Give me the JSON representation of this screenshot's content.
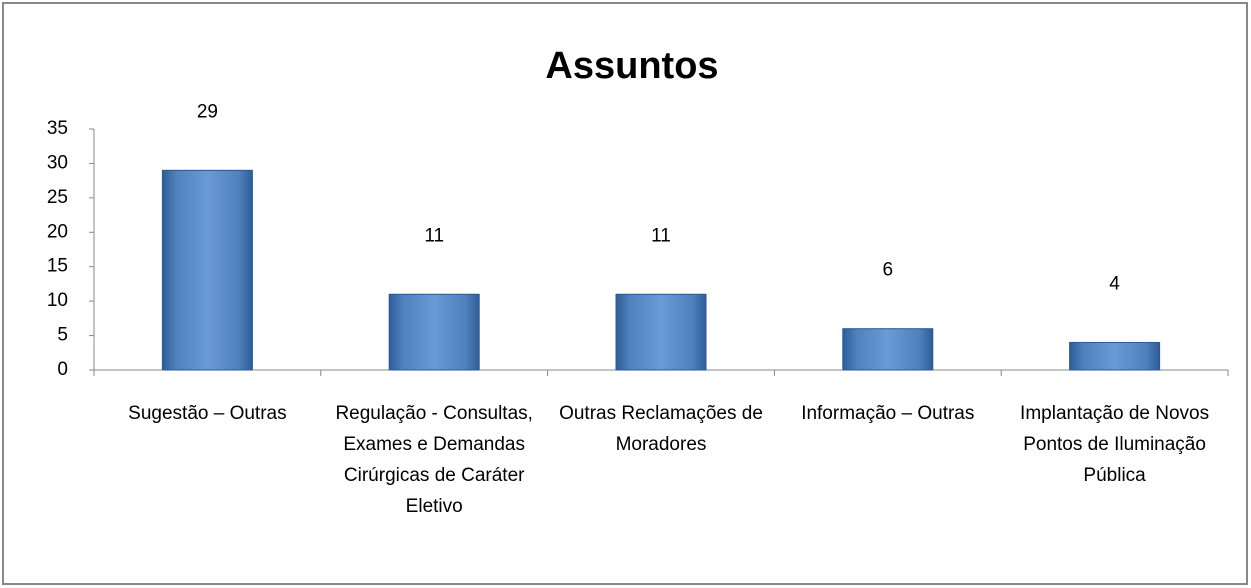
{
  "chart_data": {
    "type": "bar",
    "title": "Assuntos",
    "categories": [
      "Sugestão – Outras",
      "Regulação - Consultas, Exames e Demandas Cirúrgicas de Caráter Eletivo",
      "Outras Reclamações de Moradores",
      "Informação – Outras",
      "Implantação de Novos Pontos de Iluminação Pública"
    ],
    "values": [
      29,
      11,
      11,
      6,
      4
    ],
    "color": "#4f81bd",
    "ylim": [
      0,
      35
    ],
    "yticks": [
      0,
      5,
      10,
      15,
      20,
      25,
      30,
      35
    ],
    "grid": false
  }
}
